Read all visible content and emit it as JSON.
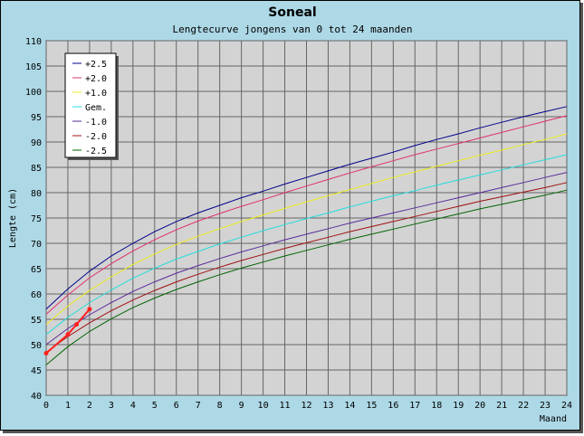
{
  "chart_data": {
    "type": "line",
    "title": "Soneal",
    "subtitle": "Lengtecurve jongens van 0 tot 24 maanden",
    "xlabel": "Maand",
    "ylabel": "Lengte (cm)",
    "xlim": [
      0,
      24
    ],
    "ylim": [
      40,
      110
    ],
    "x_ticks": [
      0,
      1,
      2,
      3,
      4,
      5,
      6,
      7,
      8,
      9,
      10,
      11,
      12,
      13,
      14,
      15,
      16,
      17,
      18,
      19,
      20,
      21,
      22,
      23,
      24
    ],
    "y_ticks": [
      40,
      45,
      50,
      55,
      60,
      65,
      70,
      75,
      80,
      85,
      90,
      95,
      100,
      105,
      110
    ],
    "grid": true,
    "legend_position": "top-left",
    "x": [
      0,
      1,
      2,
      3,
      4,
      5,
      6,
      7,
      8,
      9,
      10,
      11,
      12,
      13,
      14,
      15,
      16,
      17,
      18,
      19,
      20,
      21,
      22,
      23,
      24
    ],
    "series": [
      {
        "name": "+2.5",
        "color": "#00008b",
        "values": [
          57,
          61,
          64.5,
          67.5,
          70,
          72.3,
          74.3,
          76,
          77.5,
          79,
          80.3,
          81.7,
          83,
          84.3,
          85.6,
          86.8,
          88,
          89.3,
          90.5,
          91.6,
          92.8,
          93.9,
          95,
          96,
          97
        ]
      },
      {
        "name": "+2.0",
        "color": "#e0306c",
        "values": [
          56,
          59.8,
          63.2,
          66,
          68.5,
          70.7,
          72.7,
          74.4,
          75.9,
          77.3,
          78.6,
          80,
          81.3,
          82.6,
          83.9,
          85.1,
          86.3,
          87.5,
          88.6,
          89.7,
          90.8,
          91.9,
          93,
          94.1,
          95.2
        ]
      },
      {
        "name": "+1.0",
        "color": "#eeee22",
        "values": [
          54,
          57.6,
          60.7,
          63.4,
          65.8,
          67.9,
          69.8,
          71.4,
          72.9,
          74.3,
          75.6,
          76.9,
          78.2,
          79.4,
          80.6,
          81.8,
          83,
          84.1,
          85.2,
          86.3,
          87.4,
          88.4,
          89.5,
          90.5,
          91.6
        ]
      },
      {
        "name": "Gem.",
        "color": "#22dddd",
        "values": [
          52,
          55.4,
          58.3,
          60.8,
          63.1,
          65.1,
          66.9,
          68.4,
          69.9,
          71.2,
          72.5,
          73.7,
          74.9,
          76,
          77.2,
          78.3,
          79.4,
          80.4,
          81.5,
          82.5,
          83.5,
          84.5,
          85.5,
          86.5,
          87.5
        ]
      },
      {
        "name": "-1.0",
        "color": "#5a2a9a",
        "values": [
          50,
          53.2,
          55.9,
          58.3,
          60.5,
          62.4,
          64.1,
          65.6,
          67,
          68.3,
          69.5,
          70.7,
          71.8,
          72.9,
          74,
          75,
          76,
          77,
          78,
          79,
          80,
          81,
          82,
          83,
          84
        ]
      },
      {
        "name": "-2.0",
        "color": "#a01010",
        "values": [
          48.5,
          51.6,
          54.3,
          56.7,
          58.8,
          60.7,
          62.4,
          63.9,
          65.3,
          66.6,
          67.8,
          69,
          70.1,
          71.2,
          72.3,
          73.3,
          74.3,
          75.3,
          76.3,
          77.3,
          78.3,
          79.2,
          80.1,
          81,
          82
        ]
      },
      {
        "name": "-2.5",
        "color": "#006400",
        "values": [
          46,
          49.6,
          52.6,
          55.1,
          57.3,
          59.2,
          60.9,
          62.4,
          63.8,
          65.1,
          66.3,
          67.5,
          68.6,
          69.7,
          70.8,
          71.8,
          72.8,
          73.8,
          74.8,
          75.8,
          76.8,
          77.7,
          78.6,
          79.5,
          80.5
        ]
      }
    ],
    "measurements": {
      "color": "#ff2020",
      "x": [
        0,
        1,
        1.4,
        2
      ],
      "y": [
        48.3,
        52,
        54,
        57
      ]
    }
  }
}
